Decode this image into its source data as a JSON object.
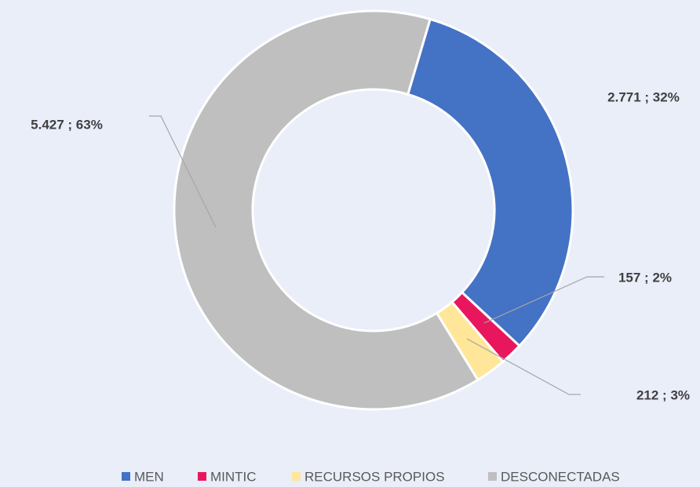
{
  "chart_data": {
    "type": "donut",
    "categories": [
      "MEN",
      "MINTIC",
      "RECURSOS PROPIOS",
      "DESCONECTADAS"
    ],
    "values": [
      2771,
      157,
      212,
      5427
    ],
    "value_labels": [
      "2.771 ; 32%",
      "157 ; 2%",
      "212 ; 3%",
      "5.427 ; 63%"
    ],
    "colors": [
      "#4472c4",
      "#e8175d",
      "#ffe699",
      "#bfbfbf"
    ],
    "legend": "bottom"
  }
}
